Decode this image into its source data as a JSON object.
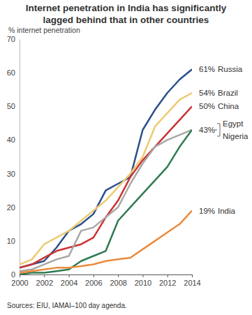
{
  "chart_data": {
    "type": "line",
    "title": "Internet penetration in India has significantly lagged behind that in other countries",
    "y_label": "% internet penetration",
    "source": "Sources: EIU, IAMAI–100 day agenda.",
    "x": [
      2000,
      2001,
      2002,
      2003,
      2004,
      2005,
      2006,
      2007,
      2008,
      2009,
      2010,
      2011,
      2012,
      2013,
      2014
    ],
    "xlim": [
      2000,
      2014
    ],
    "xticks": [
      2000,
      2002,
      2004,
      2006,
      2008,
      2010,
      2012,
      2014
    ],
    "ylim": [
      0,
      70
    ],
    "yticks": [
      0,
      10,
      20,
      30,
      40,
      50,
      60,
      70
    ],
    "grid": false,
    "data_labels": true,
    "series": [
      {
        "name": "Russia",
        "color": "#2b4f8e",
        "values": [
          2,
          3,
          4,
          8,
          13,
          15,
          18,
          25,
          27,
          29,
          43,
          49,
          54,
          58,
          61
        ],
        "value_labels": [
          null,
          null,
          null,
          null,
          null,
          null,
          null,
          null,
          null,
          null,
          null,
          null,
          null,
          null,
          "61%"
        ]
      },
      {
        "name": "Brazil",
        "color": "#eccb73",
        "values": [
          3,
          4.5,
          9,
          11,
          13,
          16,
          19,
          22,
          26,
          30,
          35,
          44,
          48,
          52,
          54
        ],
        "value_labels": [
          null,
          null,
          null,
          null,
          null,
          null,
          null,
          null,
          null,
          null,
          null,
          null,
          null,
          null,
          "54%"
        ]
      },
      {
        "name": "China",
        "color": "#cc3333",
        "values": [
          2,
          3,
          5,
          7,
          8,
          9,
          11,
          17,
          22,
          29,
          34,
          38,
          42,
          46,
          50
        ],
        "value_labels": [
          null,
          null,
          null,
          null,
          null,
          null,
          null,
          null,
          null,
          null,
          null,
          null,
          null,
          null,
          "50%"
        ]
      },
      {
        "name": "Egypt",
        "color": "#a8a8a8",
        "values": [
          1,
          1.5,
          3,
          4.5,
          5.5,
          13,
          14,
          17,
          20,
          27,
          33,
          38,
          40,
          41.5,
          43
        ],
        "value_labels": [
          null,
          null,
          null,
          null,
          null,
          null,
          null,
          null,
          null,
          null,
          null,
          null,
          null,
          null,
          "43%"
        ]
      },
      {
        "name": "Nigeria",
        "color": "#2e7b52",
        "values": [
          0,
          0.5,
          0.5,
          1,
          1.5,
          4,
          5.5,
          7,
          16,
          20,
          24,
          28,
          32,
          38,
          43
        ],
        "value_labels": [
          null,
          null,
          null,
          null,
          null,
          null,
          null,
          null,
          null,
          null,
          null,
          null,
          null,
          null,
          null
        ]
      },
      {
        "name": "India",
        "color": "#ec8a3c",
        "values": [
          0.5,
          1,
          1.5,
          2,
          2,
          2.5,
          3,
          4,
          4.5,
          5,
          7.5,
          10,
          12.5,
          15,
          19
        ],
        "value_labels": [
          null,
          null,
          null,
          null,
          null,
          null,
          null,
          null,
          null,
          null,
          null,
          null,
          null,
          null,
          "19%"
        ]
      }
    ]
  }
}
